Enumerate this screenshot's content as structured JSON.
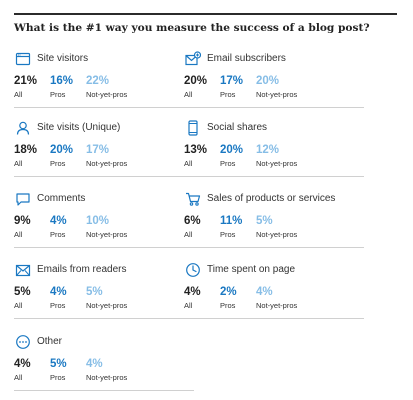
{
  "title": "What is the #1 way you measure the success of a blog post?",
  "labels": {
    "all": "All",
    "pros": "Pros",
    "nyp": "Not-yet-pros"
  },
  "colors": {
    "pros": "#1a78c2",
    "not_yet_pros": "#86bde6",
    "all": "#222222"
  },
  "items": [
    {
      "name": "Site visitors",
      "icon": "browser-window-icon",
      "all": "21%",
      "pros": "16%",
      "nyp": "22%"
    },
    {
      "name": "Email subscribers",
      "icon": "email-subscribe-icon",
      "all": "20%",
      "pros": "17%",
      "nyp": "20%"
    },
    {
      "name": "Site visits (Unique)",
      "icon": "user-icon",
      "all": "18%",
      "pros": "20%",
      "nyp": "17%"
    },
    {
      "name": "Social shares",
      "icon": "smartphone-icon",
      "all": "13%",
      "pros": "20%",
      "nyp": "12%"
    },
    {
      "name": "Comments",
      "icon": "speech-bubble-icon",
      "all": "9%",
      "pros": "4%",
      "nyp": "10%"
    },
    {
      "name": "Sales of products or services",
      "icon": "shopping-cart-icon",
      "all": "6%",
      "pros": "11%",
      "nyp": "5%"
    },
    {
      "name": "Emails from readers",
      "icon": "envelope-icon",
      "all": "5%",
      "pros": "4%",
      "nyp": "5%"
    },
    {
      "name": "Time spent on page",
      "icon": "clock-icon",
      "all": "4%",
      "pros": "2%",
      "nyp": "4%"
    },
    {
      "name": "Other",
      "icon": "ellipsis-icon",
      "all": "4%",
      "pros": "5%",
      "nyp": "4%"
    }
  ]
}
